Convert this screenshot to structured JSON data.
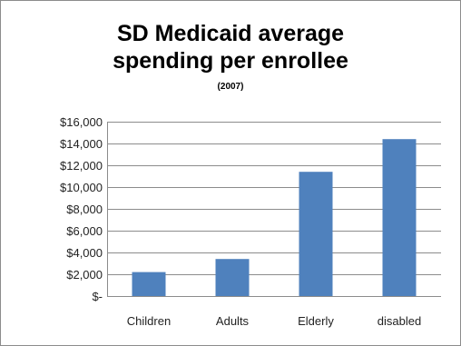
{
  "chart_data": {
    "type": "bar",
    "title_lines": [
      "SD Medicaid average",
      "spending per enrollee"
    ],
    "subtitle": "(2007)",
    "categories": [
      "Children",
      "Adults",
      "Elderly",
      "disabled"
    ],
    "values": [
      2200,
      3400,
      11400,
      14400
    ],
    "ylim": [
      0,
      16000
    ],
    "yticks": [
      0,
      2000,
      4000,
      6000,
      8000,
      10000,
      12000,
      14000,
      16000
    ],
    "ytick_labels": [
      "$-",
      "$2,000",
      "$4,000",
      "$6,000",
      "$8,000",
      "$10,000",
      "$12,000",
      "$14,000",
      "$16,000"
    ],
    "grid": true,
    "legend": "none",
    "bar_color": "#4f81bd",
    "grid_color": "#8c8c8c"
  }
}
